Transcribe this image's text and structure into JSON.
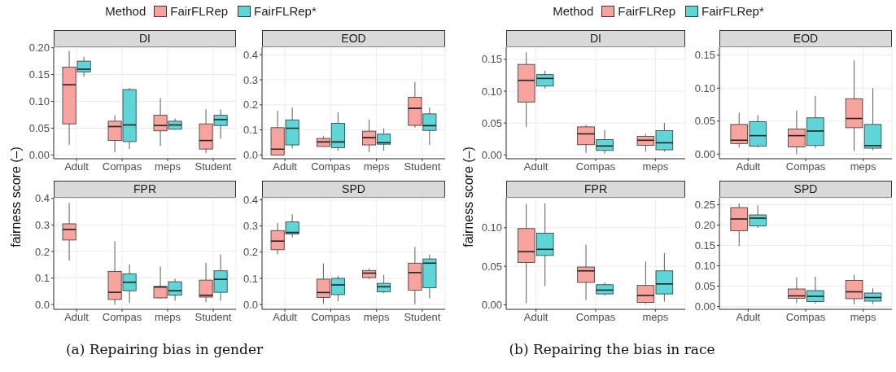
{
  "chart_data": [
    {
      "type": "box",
      "title": "DI",
      "ylabel": "fairness score (–)",
      "legend": "top",
      "legend_title": "Method",
      "annotations": [
        "(a) Repairing bias in gender"
      ],
      "categories": [
        "Adult",
        "Compas",
        "meps",
        "Student"
      ],
      "ylim": [
        -0.007,
        0.201
      ],
      "yticks": [
        {
          "value": 0,
          "label": "0.00"
        },
        0.05,
        {
          "value": 0.1,
          "label": "0.10"
        },
        0.15,
        {
          "value": 0.2,
          "label": "0.20"
        }
      ],
      "grid": true,
      "series": [
        {
          "name": "FairFLRep",
          "color": "#f8a39e",
          "boxes": [
            {
              "low": 0.019,
              "q1": 0.058,
              "median": 0.131,
              "q3": 0.164,
              "high": 0.194
            },
            {
              "low": 0.005,
              "q1": 0.027,
              "median": 0.053,
              "q3": 0.063,
              "high": 0.074
            },
            {
              "low": 0.017,
              "q1": 0.045,
              "median": 0.055,
              "q3": 0.074,
              "high": 0.106
            },
            {
              "low": 0.003,
              "q1": 0.011,
              "median": 0.027,
              "q3": 0.058,
              "high": 0.085
            }
          ]
        },
        {
          "name": "FairFLRep*",
          "color": "#5ed5d6",
          "boxes": [
            {
              "low": 0.146,
              "q1": 0.155,
              "median": 0.16,
              "q3": 0.175,
              "high": 0.183
            },
            {
              "low": 0.011,
              "q1": 0.025,
              "median": 0.056,
              "q3": 0.122,
              "high": 0.125
            },
            {
              "low": 0.047,
              "q1": 0.048,
              "median": 0.056,
              "q3": 0.063,
              "high": 0.068
            },
            {
              "low": 0.03,
              "q1": 0.055,
              "median": 0.066,
              "q3": 0.074,
              "high": 0.085
            }
          ]
        }
      ]
    },
    {
      "type": "box",
      "title": "EOD",
      "categories": [
        "Adult",
        "Compas",
        "meps",
        "Student"
      ],
      "ylim": [
        -0.015,
        0.43
      ],
      "yticks": [
        {
          "value": 0,
          "label": "0.0"
        },
        0.1,
        0.2,
        0.3,
        0.4
      ],
      "grid": true,
      "series": [
        {
          "color": "#f8a39e",
          "boxes": [
            {
              "low": 0.005,
              "q1": 0,
              "median": 0.023,
              "q3": 0.109,
              "high": 0.176
            },
            {
              "low": 0.032,
              "q1": 0.034,
              "median": 0.052,
              "q3": 0.066,
              "high": 0.075
            },
            {
              "low": 0.011,
              "q1": 0.04,
              "median": 0.069,
              "q3": 0.095,
              "high": 0.141
            },
            {
              "low": 0.109,
              "q1": 0.118,
              "median": 0.186,
              "q3": 0.23,
              "high": 0.291
            }
          ]
        },
        {
          "color": "#5ed5d6",
          "boxes": [
            {
              "low": 0.026,
              "q1": 0.04,
              "median": 0.107,
              "q3": 0.14,
              "high": 0.189
            },
            {
              "low": 0.017,
              "q1": 0.029,
              "median": 0.052,
              "q3": 0.126,
              "high": 0.17
            },
            {
              "low": 0.017,
              "q1": 0.043,
              "median": 0.049,
              "q3": 0.083,
              "high": 0.106
            },
            {
              "low": 0.04,
              "q1": 0.098,
              "median": 0.117,
              "q3": 0.164,
              "high": 0.19
            }
          ]
        }
      ]
    },
    {
      "type": "box",
      "title": "FPR",
      "categories": [
        "Adult",
        "Compas",
        "meps",
        "Student"
      ],
      "ylim": [
        -0.018,
        0.402
      ],
      "yticks": [
        {
          "value": 0,
          "label": "0.0"
        },
        0.1,
        0.2,
        0.3,
        0.4
      ],
      "grid": true,
      "series": [
        {
          "color": "#f8a39e",
          "boxes": [
            {
              "low": 0.165,
              "q1": 0.243,
              "median": 0.283,
              "q3": 0.304,
              "high": 0.383
            },
            {
              "low": 0.001,
              "q1": 0.019,
              "median": 0.046,
              "q3": 0.125,
              "high": 0.238
            },
            {
              "low": 0.022,
              "q1": 0.025,
              "median": 0.066,
              "q3": 0.068,
              "high": 0.143
            },
            {
              "low": 0.009,
              "q1": 0.028,
              "median": 0.035,
              "q3": 0.092,
              "high": 0.157
            }
          ]
        },
        {
          "color": "#5ed5d6",
          "boxes": [
            null,
            {
              "low": 0.006,
              "q1": 0.052,
              "median": 0.084,
              "q3": 0.116,
              "high": 0.151
            },
            {
              "low": 0.014,
              "q1": 0.035,
              "median": 0.052,
              "q3": 0.086,
              "high": 0.097
            },
            {
              "low": 0.014,
              "q1": 0.046,
              "median": 0.095,
              "q3": 0.127,
              "high": 0.189
            }
          ]
        }
      ]
    },
    {
      "type": "box",
      "title": "SPD",
      "categories": [
        "Adult",
        "Compas",
        "meps",
        "Student"
      ],
      "ylim": [
        -0.018,
        0.407
      ],
      "yticks": [
        {
          "value": 0,
          "label": "0.0"
        },
        0.1,
        0.2,
        0.3,
        0.4
      ],
      "grid": true,
      "series": [
        {
          "color": "#f8a39e",
          "boxes": [
            {
              "low": 0.191,
              "q1": 0.209,
              "median": 0.242,
              "q3": 0.282,
              "high": 0.311
            },
            {
              "low": 0.003,
              "q1": 0.027,
              "median": 0.046,
              "q3": 0.097,
              "high": 0.157
            },
            {
              "low": 0.098,
              "q1": 0.103,
              "median": 0.12,
              "q3": 0.13,
              "high": 0.138
            },
            {
              "low": 0.002,
              "q1": 0.055,
              "median": 0.122,
              "q3": 0.158,
              "high": 0.22
            }
          ]
        },
        {
          "color": "#5ed5d6",
          "boxes": [
            {
              "low": 0.256,
              "q1": 0.269,
              "median": 0.275,
              "q3": 0.315,
              "high": 0.344
            },
            {
              "low": 0.013,
              "q1": 0.038,
              "median": 0.075,
              "q3": 0.1,
              "high": 0.109
            },
            {
              "low": 0.043,
              "q1": 0.049,
              "median": 0.068,
              "q3": 0.081,
              "high": 0.113
            },
            {
              "low": 0.024,
              "q1": 0.064,
              "median": 0.158,
              "q3": 0.174,
              "high": 0.191
            }
          ]
        }
      ]
    },
    {
      "type": "box",
      "title": "DI",
      "ylabel": "fairness score (–)",
      "legend": "top",
      "legend_title": "Method",
      "annotations": [
        "(b) Repairing the bias in race"
      ],
      "categories": [
        "Adult",
        "Compas",
        "meps"
      ],
      "ylim": [
        -0.006,
        0.169
      ],
      "yticks": [
        {
          "value": 0,
          "label": "0.00"
        },
        0.05,
        {
          "value": 0.1,
          "label": "0.10"
        },
        0.15
      ],
      "grid": true,
      "series": [
        {
          "name": "FairFLRep",
          "color": "#f8a39e",
          "boxes": [
            {
              "low": 0.044,
              "q1": 0.083,
              "median": 0.117,
              "q3": 0.142,
              "high": 0.161
            },
            {
              "low": 0.003,
              "q1": 0.016,
              "median": 0.033,
              "q3": 0.044,
              "high": 0.047
            },
            {
              "low": 0.005,
              "q1": 0.015,
              "median": 0.023,
              "q3": 0.029,
              "high": 0.033
            }
          ]
        },
        {
          "name": "FairFLRep*",
          "color": "#5ed5d6",
          "boxes": [
            {
              "low": 0.104,
              "q1": 0.108,
              "median": 0.12,
              "q3": 0.126,
              "high": 0.132
            },
            {
              "low": 0.002,
              "q1": 0.007,
              "median": 0.014,
              "q3": 0.024,
              "high": 0.039
            },
            {
              "low": 0.005,
              "q1": 0.008,
              "median": 0.019,
              "q3": 0.038,
              "high": 0.05
            }
          ]
        }
      ]
    },
    {
      "type": "box",
      "title": "EOD",
      "categories": [
        "Adult",
        "Compas",
        "meps"
      ],
      "ylim": [
        -0.007,
        0.162
      ],
      "yticks": [
        {
          "value": 0,
          "label": "0.00"
        },
        0.05,
        {
          "value": 0.1,
          "label": "0.10"
        },
        0.15
      ],
      "grid": true,
      "series": [
        {
          "color": "#f8a39e",
          "boxes": [
            {
              "low": 0.01,
              "q1": 0.016,
              "median": 0.021,
              "q3": 0.045,
              "high": 0.063
            },
            {
              "low": 0,
              "q1": 0.011,
              "median": 0.028,
              "q3": 0.038,
              "high": 0.066
            },
            {
              "low": 0.005,
              "q1": 0.04,
              "median": 0.054,
              "q3": 0.084,
              "high": 0.142
            }
          ]
        },
        {
          "color": "#5ed5d6",
          "boxes": [
            {
              "low": 0.01,
              "q1": 0.012,
              "median": 0.028,
              "q3": 0.049,
              "high": 0.059
            },
            {
              "low": 0.009,
              "q1": 0.013,
              "median": 0.035,
              "q3": 0.055,
              "high": 0.088
            },
            {
              "low": 0.006,
              "q1": 0.009,
              "median": 0.013,
              "q3": 0.045,
              "high": 0.1
            }
          ]
        }
      ]
    },
    {
      "type": "box",
      "title": "FPR",
      "categories": [
        "Adult",
        "Compas",
        "meps"
      ],
      "ylim": [
        -0.006,
        0.139
      ],
      "yticks": [
        {
          "value": 0,
          "label": "0.00"
        },
        0.05,
        {
          "value": 0.1,
          "label": "0.10"
        }
      ],
      "grid": true,
      "series": [
        {
          "color": "#f8a39e",
          "boxes": [
            {
              "low": 0.002,
              "q1": 0.055,
              "median": 0.069,
              "q3": 0.099,
              "high": 0.131
            },
            {
              "low": 0.006,
              "q1": 0.029,
              "median": 0.044,
              "q3": 0.049,
              "high": 0.078
            },
            {
              "low": 0.001,
              "q1": 0.003,
              "median": 0.012,
              "q3": 0.025,
              "high": 0.056
            }
          ]
        },
        {
          "color": "#5ed5d6",
          "boxes": [
            {
              "low": 0.024,
              "q1": 0.064,
              "median": 0.072,
              "q3": 0.093,
              "high": 0.132
            },
            {
              "low": 0.012,
              "q1": 0.014,
              "median": 0.019,
              "q3": 0.026,
              "high": 0.029
            },
            {
              "low": 0.004,
              "q1": 0.014,
              "median": 0.027,
              "q3": 0.044,
              "high": 0.067
            }
          ]
        }
      ]
    },
    {
      "type": "box",
      "title": "SPD",
      "categories": [
        "Adult",
        "Compas",
        "meps"
      ],
      "ylim": [
        -0.007,
        0.267
      ],
      "yticks": [
        {
          "value": 0,
          "label": "0.00"
        },
        0.05,
        {
          "value": 0.1,
          "label": "0.10"
        },
        0.15,
        {
          "value": 0.2,
          "label": "0.20"
        },
        0.25
      ],
      "grid": true,
      "series": [
        {
          "color": "#f8a39e",
          "boxes": [
            {
              "low": 0.148,
              "q1": 0.186,
              "median": 0.215,
              "q3": 0.243,
              "high": 0.253
            },
            {
              "low": 0.008,
              "q1": 0.02,
              "median": 0.026,
              "q3": 0.043,
              "high": 0.071
            },
            {
              "low": 0.005,
              "q1": 0.019,
              "median": 0.036,
              "q3": 0.064,
              "high": 0.078
            }
          ]
        },
        {
          "color": "#5ed5d6",
          "boxes": [
            {
              "low": 0.193,
              "q1": 0.198,
              "median": 0.217,
              "q3": 0.225,
              "high": 0.248
            },
            {
              "low": 0.007,
              "q1": 0.012,
              "median": 0.025,
              "q3": 0.039,
              "high": 0.073
            },
            {
              "low": 0.006,
              "q1": 0.013,
              "median": 0.022,
              "q3": 0.033,
              "high": 0.045
            }
          ]
        }
      ]
    }
  ]
}
